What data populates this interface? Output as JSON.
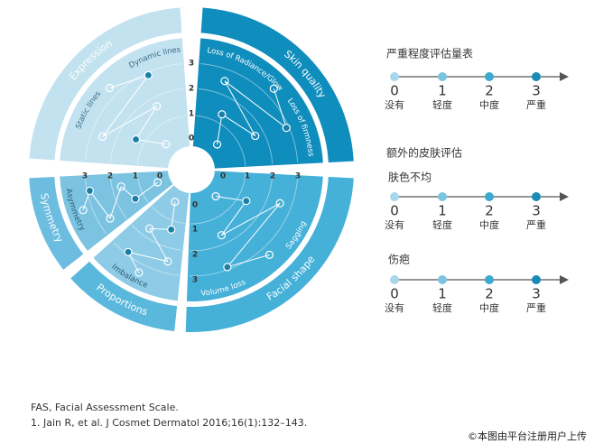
{
  "wheel": {
    "ticks": [
      "0",
      "1",
      "2",
      "3"
    ],
    "sections": [
      {
        "name": "Expression",
        "items": [
          "Dynamic lines",
          "Static lines"
        ]
      },
      {
        "name": "Skin quality",
        "items": [
          "Loss of Radiance/Glow",
          "Loss of firmness"
        ]
      },
      {
        "name": "Facial shape",
        "items": [
          "Sagging",
          "Volume loss"
        ]
      },
      {
        "name": "Proportions",
        "items": [
          "Imbalance"
        ]
      },
      {
        "name": "Symmetry",
        "items": [
          "Asymmetry"
        ]
      }
    ]
  },
  "severity_scale": {
    "title": "严重程度评估量表",
    "levels": [
      {
        "value": "0",
        "label": "没有"
      },
      {
        "value": "1",
        "label": "轻度"
      },
      {
        "value": "2",
        "label": "中度"
      },
      {
        "value": "3",
        "label": "严重"
      }
    ]
  },
  "additional": {
    "title": "额外的皮肤评估",
    "items": [
      "肤色不均",
      "伤疤"
    ]
  },
  "footnotes": [
    "FAS, Facial Assessment Scale.",
    "1. Jain R, et al. J Cosmet Dermatol 2016;16(1):132–143."
  ],
  "watermark": "©本图由平台注册用户上传"
}
